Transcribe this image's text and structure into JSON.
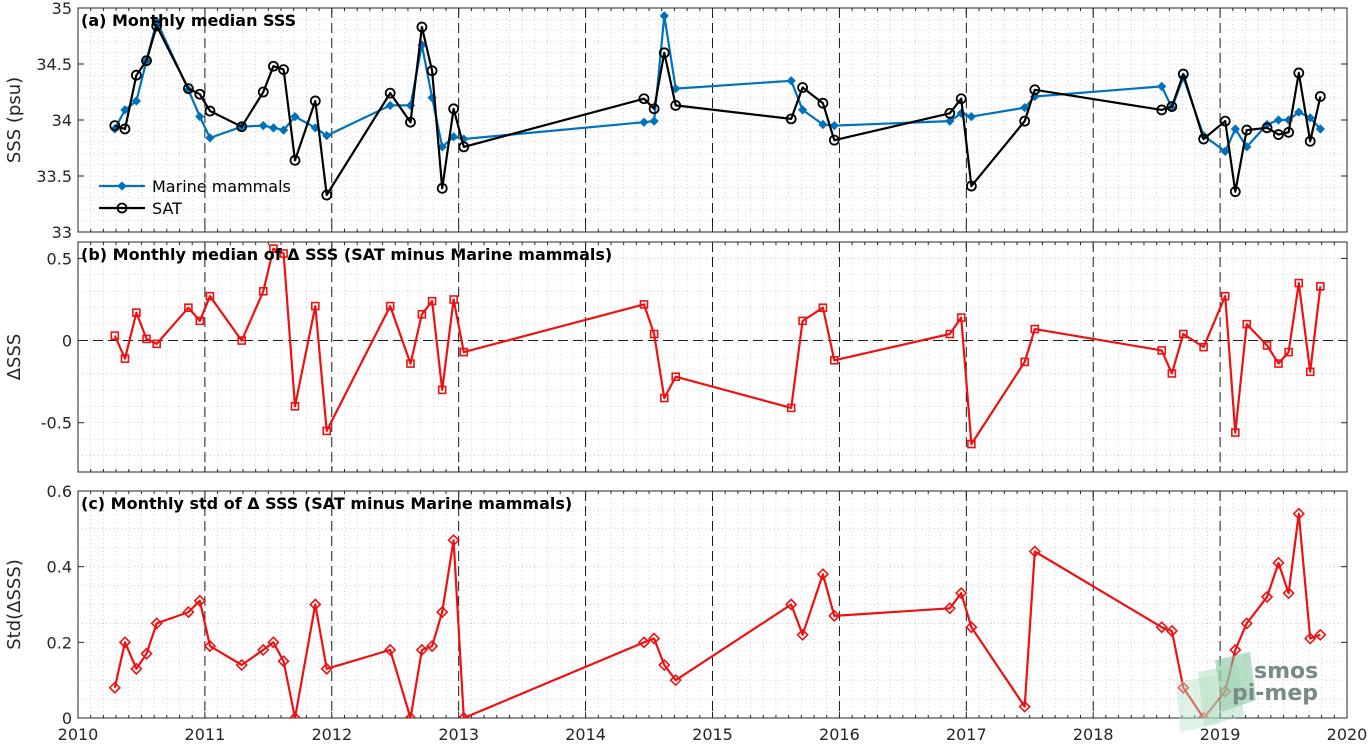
{
  "chart_data": [
    {
      "type": "line",
      "title": "(a) Monthly median SSS",
      "ylabel": "SSS (psu)",
      "xlim": [
        2010,
        2020
      ],
      "ylim": [
        33,
        35
      ],
      "yticks": [
        33,
        33.5,
        34,
        34.5,
        35
      ],
      "ytick_labels": [
        "33",
        "33.5",
        "34",
        "34.5",
        "35"
      ],
      "grid": true,
      "legend_position": "bottom-left",
      "series": [
        {
          "name": "Marine mammals",
          "color": "#0072BD",
          "marker": "diamond",
          "x": [
            2010.29,
            2010.37,
            2010.46,
            2010.54,
            2010.62,
            2010.87,
            2010.96,
            2011.04,
            2011.29,
            2011.46,
            2011.54,
            2011.62,
            2011.71,
            2011.87,
            2011.96,
            2012.46,
            2012.62,
            2012.71,
            2012.79,
            2012.87,
            2012.96,
            2013.04,
            2014.46,
            2014.54,
            2014.62,
            2014.71,
            2015.62,
            2015.71,
            2015.87,
            2015.96,
            2016.87,
            2016.96,
            2017.04,
            2017.46,
            2017.54,
            2018.54,
            2018.62,
            2018.71,
            2018.87,
            2019.04,
            2019.12,
            2019.21,
            2019.37,
            2019.46,
            2019.54,
            2019.62,
            2019.71,
            2019.79
          ],
          "y": [
            33.92,
            34.09,
            34.17,
            34.53,
            34.88,
            34.27,
            34.03,
            33.84,
            33.94,
            33.95,
            33.93,
            33.91,
            34.03,
            33.93,
            33.86,
            34.13,
            34.13,
            34.67,
            34.2,
            33.76,
            33.85,
            33.83,
            33.98,
            33.99,
            34.93,
            34.28,
            34.35,
            34.09,
            33.96,
            33.95,
            33.99,
            34.06,
            34.03,
            34.11,
            34.21,
            34.3,
            34.11,
            34.38,
            33.86,
            33.72,
            33.92,
            33.76,
            33.96,
            34.0,
            34.0,
            34.07,
            34.02,
            33.92
          ]
        },
        {
          "name": "SAT",
          "color": "#000000",
          "marker": "circle",
          "x": [
            2010.29,
            2010.37,
            2010.46,
            2010.54,
            2010.62,
            2010.87,
            2010.96,
            2011.04,
            2011.29,
            2011.46,
            2011.54,
            2011.62,
            2011.71,
            2011.87,
            2011.96,
            2012.46,
            2012.62,
            2012.71,
            2012.79,
            2012.87,
            2012.96,
            2013.04,
            2014.46,
            2014.54,
            2014.62,
            2014.71,
            2015.62,
            2015.71,
            2015.87,
            2015.96,
            2016.87,
            2016.96,
            2017.04,
            2017.46,
            2017.54,
            2018.54,
            2018.62,
            2018.71,
            2018.87,
            2019.04,
            2019.12,
            2019.21,
            2019.37,
            2019.46,
            2019.54,
            2019.62,
            2019.71,
            2019.79
          ],
          "y": [
            33.95,
            33.92,
            34.4,
            34.53,
            34.84,
            34.28,
            34.23,
            34.08,
            33.94,
            34.25,
            34.48,
            34.45,
            33.64,
            34.17,
            33.33,
            34.24,
            33.98,
            34.83,
            34.44,
            33.39,
            34.1,
            33.76,
            34.19,
            34.1,
            34.6,
            34.13,
            34.01,
            34.29,
            34.15,
            33.82,
            34.06,
            34.19,
            33.41,
            33.99,
            34.27,
            34.09,
            34.12,
            34.41,
            33.83,
            33.99,
            33.36,
            33.91,
            33.93,
            33.87,
            33.89,
            34.42,
            33.81,
            34.21
          ]
        }
      ]
    },
    {
      "type": "line",
      "title": "(b) Monthly median of Δ SSS (SAT minus Marine mammals)",
      "ylabel": "ΔSSS",
      "xlim": [
        2010,
        2020
      ],
      "ylim": [
        -0.8,
        0.6
      ],
      "yticks": [
        -0.5,
        0,
        0.5
      ],
      "ytick_labels": [
        "-0.5",
        "0",
        "0.5"
      ],
      "grid": true,
      "zero_line": "dashed",
      "series": [
        {
          "color": "#EE1111",
          "marker": "square",
          "x": [
            2010.29,
            2010.37,
            2010.46,
            2010.54,
            2010.62,
            2010.87,
            2010.96,
            2011.04,
            2011.29,
            2011.46,
            2011.54,
            2011.62,
            2011.71,
            2011.87,
            2011.96,
            2012.46,
            2012.62,
            2012.71,
            2012.79,
            2012.87,
            2012.96,
            2013.04,
            2014.46,
            2014.54,
            2014.62,
            2014.71,
            2015.62,
            2015.71,
            2015.87,
            2015.96,
            2016.87,
            2016.96,
            2017.04,
            2017.46,
            2017.54,
            2018.54,
            2018.62,
            2018.71,
            2018.87,
            2019.04,
            2019.12,
            2019.21,
            2019.37,
            2019.46,
            2019.54,
            2019.62,
            2019.71,
            2019.79
          ],
          "y": [
            0.03,
            -0.11,
            0.17,
            0.01,
            -0.02,
            0.2,
            0.12,
            0.27,
            0.0,
            0.3,
            0.56,
            0.53,
            -0.4,
            0.21,
            -0.55,
            0.21,
            -0.14,
            0.16,
            0.24,
            -0.3,
            0.25,
            -0.07,
            0.22,
            0.04,
            -0.35,
            -0.22,
            -0.41,
            0.12,
            0.2,
            -0.12,
            0.04,
            0.14,
            -0.63,
            -0.13,
            0.07,
            -0.06,
            -0.2,
            0.04,
            -0.04,
            0.27,
            -0.56,
            0.1,
            -0.03,
            -0.14,
            -0.07,
            0.35,
            -0.19,
            0.33
          ]
        }
      ]
    },
    {
      "type": "line",
      "title": "(c) Monthly std of Δ SSS (SAT minus Marine mammals)",
      "ylabel": "Std(ΔSSS)",
      "xlabel": "",
      "xlim": [
        2010,
        2020
      ],
      "ylim": [
        0,
        0.6
      ],
      "yticks": [
        0,
        0.2,
        0.4,
        0.6
      ],
      "ytick_labels": [
        "0",
        "0.2",
        "0.4",
        "0.6"
      ],
      "xticks": [
        2010,
        2011,
        2012,
        2013,
        2014,
        2015,
        2016,
        2017,
        2018,
        2019,
        2020
      ],
      "xtick_labels": [
        "2010",
        "2011",
        "2012",
        "2013",
        "2014",
        "2015",
        "2016",
        "2017",
        "2018",
        "2019",
        "2020"
      ],
      "grid": true,
      "series": [
        {
          "color": "#EE1111",
          "marker": "diamond",
          "x": [
            2010.29,
            2010.37,
            2010.46,
            2010.54,
            2010.62,
            2010.87,
            2010.96,
            2011.04,
            2011.29,
            2011.46,
            2011.54,
            2011.62,
            2011.71,
            2011.87,
            2011.96,
            2012.46,
            2012.62,
            2012.71,
            2012.79,
            2012.87,
            2012.96,
            2013.04,
            2014.46,
            2014.54,
            2014.62,
            2014.71,
            2015.62,
            2015.71,
            2015.87,
            2015.96,
            2016.87,
            2016.96,
            2017.04,
            2017.46,
            2017.54,
            2018.54,
            2018.62,
            2018.71,
            2018.87,
            2019.04,
            2019.12,
            2019.21,
            2019.37,
            2019.46,
            2019.54,
            2019.62,
            2019.71,
            2019.79
          ],
          "y": [
            0.08,
            0.2,
            0.13,
            0.17,
            0.25,
            0.28,
            0.31,
            0.19,
            0.14,
            0.18,
            0.2,
            0.15,
            0.0,
            0.3,
            0.13,
            0.18,
            0.0,
            0.18,
            0.19,
            0.28,
            0.47,
            0.0,
            0.2,
            0.21,
            0.14,
            0.1,
            0.3,
            0.22,
            0.38,
            0.27,
            0.29,
            0.33,
            0.24,
            0.03,
            0.44,
            0.24,
            0.23,
            0.08,
            0.0,
            0.07,
            0.18,
            0.25,
            0.32,
            0.41,
            0.33,
            0.54,
            0.21,
            0.22
          ]
        }
      ]
    }
  ],
  "logo": {
    "line1": "smos",
    "line2": "pi-mep",
    "color": "#7a8a86",
    "accent": "#7fc39a"
  }
}
